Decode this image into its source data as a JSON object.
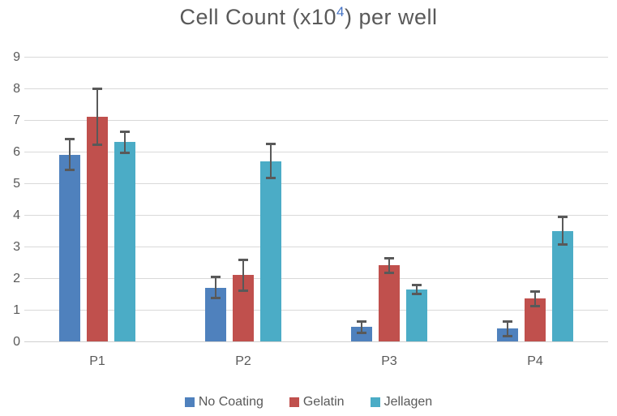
{
  "title": {
    "prefix": "Cell Count (x10",
    "superscript": "4",
    "suffix": ") per well"
  },
  "colors": {
    "background": "#FFFFFF",
    "text": "#595959",
    "gridline": "#D9D9D9",
    "axis_line": "#CFCFCF",
    "error_bar": "#595959",
    "title_superscript": "#4472C4",
    "series_blue": "#4F81BD",
    "series_red": "#C0504D",
    "series_teal": "#4BACC6"
  },
  "chart_data": {
    "type": "bar",
    "title": "Cell Count (x10^4) per well",
    "categories": [
      "P1",
      "P2",
      "P3",
      "P4"
    ],
    "series": [
      {
        "name": "No Coating",
        "color": "#4F81BD",
        "values": [
          5.9,
          1.7,
          0.45,
          0.4
        ],
        "errors": [
          0.5,
          0.35,
          0.2,
          0.25
        ]
      },
      {
        "name": "Gelatin",
        "color": "#C0504D",
        "values": [
          7.1,
          2.1,
          2.4,
          1.35
        ],
        "errors": [
          0.9,
          0.5,
          0.25,
          0.25
        ]
      },
      {
        "name": "Jellagen",
        "color": "#4BACC6",
        "values": [
          6.3,
          5.7,
          1.65,
          3.5
        ],
        "errors": [
          0.35,
          0.55,
          0.15,
          0.45
        ]
      }
    ],
    "xlabel": "",
    "ylabel": "",
    "ylim": [
      0,
      9
    ],
    "ytick_step": 1,
    "grid": true,
    "error_bars": true,
    "legend_position": "bottom"
  }
}
